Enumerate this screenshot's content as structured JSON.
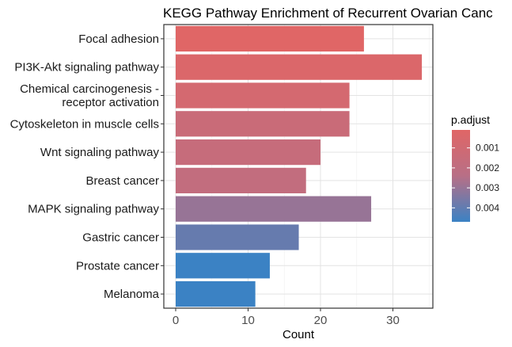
{
  "chart_data": {
    "type": "bar",
    "orientation": "horizontal",
    "title": "KEGG Pathway Enrichment of Recurrent Ovarian Canc",
    "xlabel": "Count",
    "ylabel": "",
    "xlim": [
      0,
      35
    ],
    "x_ticks": [
      "0",
      "10",
      "20",
      "30"
    ],
    "grid": true,
    "categories": [
      "Focal adhesion",
      "PI3K-Akt signaling pathway",
      "Chemical carcinogenesis -\nreceptor activation",
      "Cytoskeleton in muscle cells",
      "Wnt signaling pathway",
      "Breast cancer",
      "MAPK signaling pathway",
      "Gastric cancer",
      "Prostate cancer",
      "Melanoma"
    ],
    "values": [
      26,
      34,
      24,
      24,
      20,
      18,
      27,
      17,
      13,
      11
    ],
    "p_adjust": [
      0.0001,
      0.0004,
      0.0008,
      0.0014,
      0.0016,
      0.0018,
      0.003,
      0.0039,
      0.0047,
      0.0047
    ],
    "legend": {
      "title": "p.adjust",
      "placement": "right",
      "ticks": [
        "0.001",
        "0.002",
        "0.003",
        "0.004"
      ],
      "tick_values": [
        0.001,
        0.002,
        0.003,
        0.004
      ],
      "range": [
        0.0001,
        0.0047
      ],
      "color_low": "#e06666",
      "color_high": "#3b82c4"
    }
  }
}
